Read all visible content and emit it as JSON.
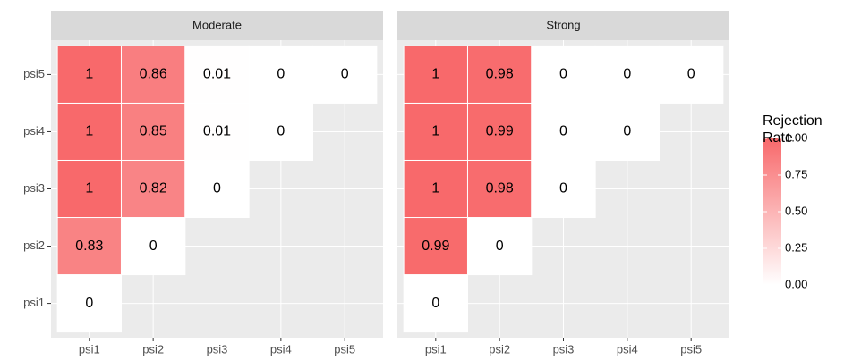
{
  "chart_data": {
    "type": "heatmap",
    "x": [
      "psi1",
      "psi2",
      "psi3",
      "psi4",
      "psi5"
    ],
    "y": [
      "psi1",
      "psi2",
      "psi3",
      "psi4",
      "psi5"
    ],
    "facets": [
      {
        "title": "Moderate",
        "values": [
          [
            0,
            null,
            null,
            null,
            null
          ],
          [
            0.83,
            0,
            null,
            null,
            null
          ],
          [
            1,
            0.82,
            0,
            null,
            null
          ],
          [
            1,
            0.85,
            0.01,
            0,
            null
          ],
          [
            1,
            0.86,
            0.01,
            0,
            0
          ]
        ]
      },
      {
        "title": "Strong",
        "values": [
          [
            0,
            null,
            null,
            null,
            null
          ],
          [
            0.99,
            0,
            null,
            null,
            null
          ],
          [
            1,
            0.98,
            0,
            null,
            null
          ],
          [
            1,
            0.99,
            0,
            0,
            null
          ],
          [
            1,
            0.98,
            0,
            0,
            0
          ]
        ]
      }
    ],
    "legend_title": "Rejection Rate",
    "color_low": "#ffffff",
    "color_high": "#f8696b",
    "clim": [
      0,
      1
    ],
    "cticks": [
      {
        "value": 0,
        "label": "0.00"
      },
      {
        "value": 0.25,
        "label": "0.25"
      },
      {
        "value": 0.5,
        "label": "0.50"
      },
      {
        "value": 0.75,
        "label": "0.75"
      },
      {
        "value": 1,
        "label": "1.00"
      }
    ]
  }
}
